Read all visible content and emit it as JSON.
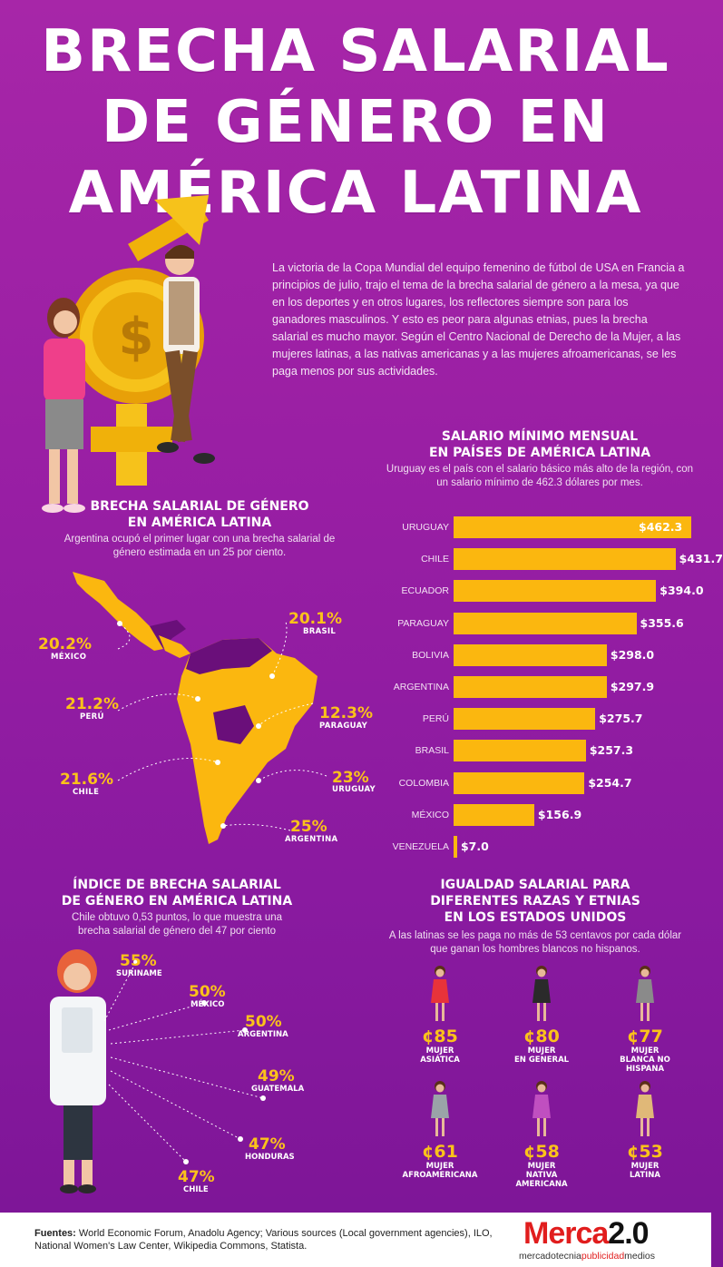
{
  "header": {
    "title_line1": "BRECHA SALARIAL",
    "title_line2": "DE GÉNERO EN",
    "title_line3": "AMÉRICA LATINA"
  },
  "intro_text": "La victoria de la Copa Mundial del equipo femenino de fútbol de USA en Francia a principios de julio, trajo el tema de la brecha salarial de género a la mesa, ya que en los deportes y en otros lugares, los reflectores siempre son para los ganadores masculinos. Y esto es peor para algunas etnias, pues la brecha salarial es mucho mayor. Según el Centro Nacional de Derecho de la Mujer, a las mujeres latinas, a las nativas americanas y a las mujeres afroamericanas, se les paga menos por sus actividades.",
  "colors": {
    "accent": "#fbb70f",
    "background": "#9a1fa4",
    "map_dark": "#6a0f7a"
  },
  "map_section": {
    "title_line1": "BRECHA SALARIAL DE GÉNERO",
    "title_line2": "EN AMÉRICA LATINA",
    "subtitle": "Argentina ocupó el primer lugar con una brecha salarial de género estimada en un 25 por ciento.",
    "labels": [
      {
        "pct": "20.1%",
        "country": "BRASIL"
      },
      {
        "pct": "20.2%",
        "country": "MÉXICO"
      },
      {
        "pct": "21.2%",
        "country": "PERÚ"
      },
      {
        "pct": "12.3%",
        "country": "PARAGUAY"
      },
      {
        "pct": "21.6%",
        "country": "CHILE"
      },
      {
        "pct": "23%",
        "country": "URUGUAY"
      },
      {
        "pct": "25%",
        "country": "ARGENTINA"
      }
    ]
  },
  "salary_section": {
    "title_line1": "SALARIO MÍNIMO MENSUAL",
    "title_line2": "EN PAÍSES DE AMÉRICA LATINA",
    "subtitle": "Uruguay es el país con el salario básico más alto de la región, con un salario mínimo de 462.3 dólares por mes."
  },
  "chart_data": {
    "type": "bar",
    "orientation": "horizontal",
    "categories": [
      "URUGUAY",
      "CHILE",
      "ECUADOR",
      "PARAGUAY",
      "BOLIVIA",
      "ARGENTINA",
      "PERÚ",
      "BRASIL",
      "COLOMBIA",
      "MÉXICO",
      "VENEZUELA"
    ],
    "values": [
      462.3,
      431.7,
      394.0,
      355.6,
      298.0,
      297.9,
      275.7,
      257.3,
      254.7,
      156.9,
      7.0
    ],
    "value_labels": [
      "$462.3",
      "$431.7",
      "$394.0",
      "$355.6",
      "$298.0",
      "$297.9",
      "$275.7",
      "$257.3",
      "$254.7",
      "$156.9",
      "$7.0"
    ],
    "title": "SALARIO MÍNIMO MENSUAL EN PAÍSES DE AMÉRICA LATINA",
    "xlim": [
      0,
      462.3
    ]
  },
  "index_section": {
    "title_line1": "ÍNDICE DE BRECHA SALARIAL",
    "title_line2": "DE GÉNERO EN AMÉRICA LATINA",
    "subtitle": "Chile obtuvo 0,53 puntos, lo que muestra una brecha salarial de género del 47 por ciento",
    "items": [
      {
        "pct": "55%",
        "country": "SURINAME"
      },
      {
        "pct": "50%",
        "country": "MÉXICO"
      },
      {
        "pct": "50%",
        "country": "ARGENTINA"
      },
      {
        "pct": "49%",
        "country": "GUATEMALA"
      },
      {
        "pct": "47%",
        "country": "HONDURAS"
      },
      {
        "pct": "47%",
        "country": "CHILE"
      }
    ]
  },
  "us_section": {
    "title_line1": "IGUALDAD SALARIAL PARA",
    "title_line2": "DIFERENTES RAZAS Y ETNIAS",
    "title_line3": "EN LOS ESTADOS UNIDOS",
    "subtitle": "A las latinas se les paga no más de 53 centavos por cada dólar que ganan los hombres blancos no hispanos.",
    "items": [
      {
        "value": "¢85",
        "label": "MUJER\nASIÁTICA",
        "dress": "#e8333a"
      },
      {
        "value": "¢80",
        "label": "MUJER\nEN GENERAL",
        "dress": "#2a2a2a"
      },
      {
        "value": "¢77",
        "label": "MUJER\nBLANCA NO\nHISPANA",
        "dress": "#8a8a8a"
      },
      {
        "value": "¢61",
        "label": "MUJER\nAFROAMERICANA",
        "dress": "#9aa3a8"
      },
      {
        "value": "¢58",
        "label": "MUJER\nNATIVA\nAMERICANA",
        "dress": "#c04fc0"
      },
      {
        "value": "¢53",
        "label": "MUJER\nLATINA",
        "dress": "#e0b878"
      }
    ]
  },
  "footer": {
    "sources_label": "Fuentes:",
    "sources_text": " World Economic Forum, Anadolu Agency; Various sources (Local government agencies), ILO, National Women's Law Center, Wikipedia Commons, Statista.",
    "logo_text": "Merca",
    "logo_version": "2.0",
    "logo_sub_1": "mercadotecnia",
    "logo_sub_2": "publicidad",
    "logo_sub_3": "medios"
  }
}
